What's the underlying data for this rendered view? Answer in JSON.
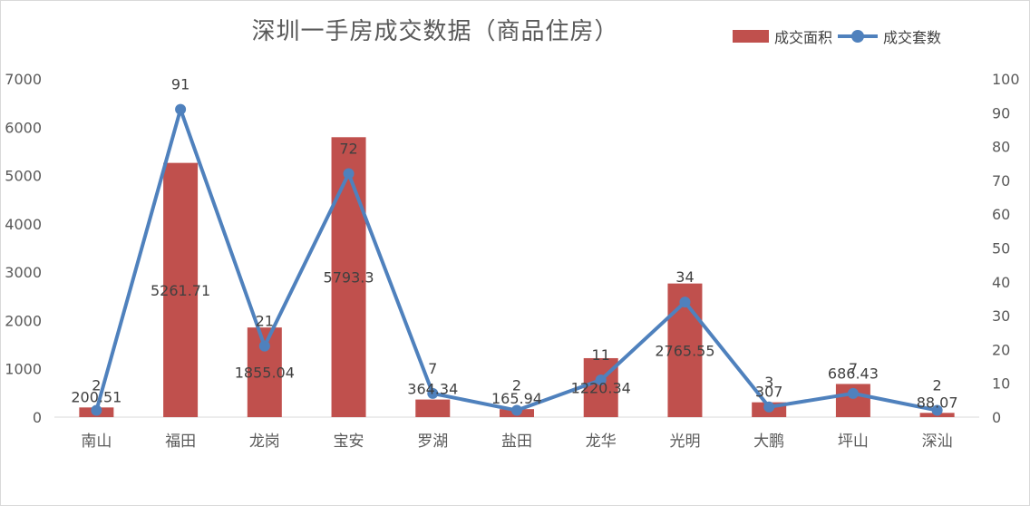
{
  "chart_data": {
    "type": "bar",
    "title": "深圳一手房成交数据（商品住房）",
    "categories": [
      "南山",
      "福田",
      "龙岗",
      "宝安",
      "罗湖",
      "盐田",
      "龙华",
      "光明",
      "大鹏",
      "坪山",
      "深汕"
    ],
    "series": [
      {
        "name": "成交面积",
        "type": "bar",
        "axis": "left",
        "color": "#c0504d",
        "values": [
          200.51,
          5261.71,
          1855.04,
          5793.3,
          364.34,
          165.94,
          1220.34,
          2765.55,
          307,
          686.43,
          88.07
        ],
        "labels": [
          "200.51",
          "5261.71",
          "1855.04",
          "5793.3",
          "364.34",
          "165.94",
          "1220.34",
          "2765.55",
          "307",
          "686.43",
          "88.07"
        ]
      },
      {
        "name": "成交套数",
        "type": "line",
        "axis": "right",
        "color": "#4f81bd",
        "values": [
          2,
          91,
          21,
          72,
          7,
          2,
          11,
          34,
          3,
          7,
          2
        ],
        "labels": [
          "2",
          "91",
          "21",
          "72",
          "7",
          "2",
          "11",
          "34",
          "3",
          "7",
          "2"
        ]
      }
    ],
    "y_left": {
      "ylim": [
        0,
        7000
      ],
      "ticks": [
        "0",
        "1000",
        "2000",
        "3000",
        "4000",
        "5000",
        "6000",
        "7000"
      ]
    },
    "y_right": {
      "ylim": [
        0,
        100
      ],
      "ticks": [
        "0",
        "10",
        "20",
        "30",
        "40",
        "50",
        "60",
        "70",
        "80",
        "90",
        "100"
      ]
    },
    "grid": false,
    "legend": "top-right"
  }
}
